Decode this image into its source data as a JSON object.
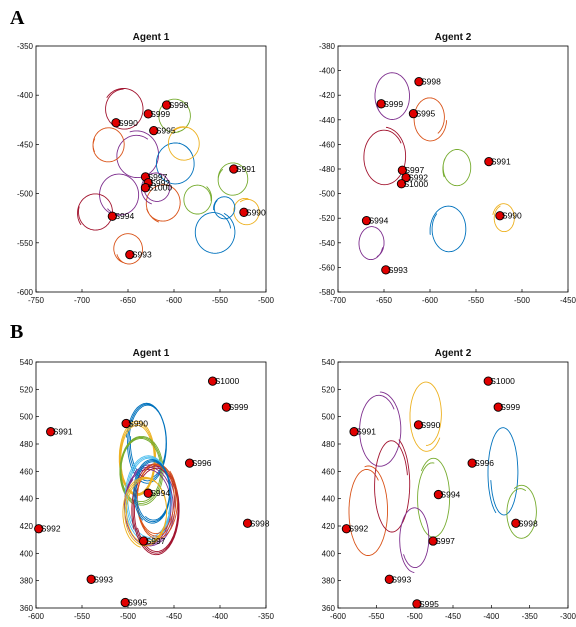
{
  "panel_letters": [
    "A",
    "B"
  ],
  "chart_data": [
    {
      "type": "scatter",
      "panel": "A",
      "title": "Agent 1",
      "xlim": [
        -750,
        -500
      ],
      "ylim": [
        -600,
        -350
      ],
      "xticks": [
        -750,
        -700,
        -650,
        -600,
        -550,
        -500
      ],
      "yticks": [
        -600,
        -550,
        -500,
        -450,
        -400,
        -350
      ],
      "grid": false,
      "points": [
        {
          "label": "S998",
          "x": -608,
          "y": -410
        },
        {
          "label": "S999",
          "x": -628,
          "y": -419
        },
        {
          "label": "S990",
          "x": -663,
          "y": -428
        },
        {
          "label": "S995",
          "x": -622,
          "y": -436
        },
        {
          "label": "S997",
          "x": -631,
          "y": -483
        },
        {
          "label": "S992",
          "x": -628,
          "y": -489
        },
        {
          "label": "S1000",
          "x": -631,
          "y": -494
        },
        {
          "label": "S991",
          "x": -535,
          "y": -475
        },
        {
          "label": "S990",
          "x": -524,
          "y": -519
        },
        {
          "label": "S994",
          "x": -667,
          "y": -523
        },
        {
          "label": "S993",
          "x": -648,
          "y": -562
        }
      ],
      "loops": [
        {
          "color": "#77AC30",
          "cx": -600,
          "cy": -420,
          "r": 18
        },
        {
          "color": "#A2142F",
          "cx": -655,
          "cy": -415,
          "r": 22
        },
        {
          "color": "#7E2F8E",
          "cx": -640,
          "cy": -460,
          "r": 24
        },
        {
          "color": "#0072BD",
          "cx": -600,
          "cy": -470,
          "r": 22
        },
        {
          "color": "#D95319",
          "cx": -610,
          "cy": -510,
          "r": 20
        },
        {
          "color": "#EDB120",
          "cx": -590,
          "cy": -450,
          "r": 18
        },
        {
          "color": "#7E2F8E",
          "cx": -660,
          "cy": -500,
          "r": 22
        },
        {
          "color": "#77AC30",
          "cx": -535,
          "cy": -485,
          "r": 17
        },
        {
          "color": "#0072BD",
          "cx": -555,
          "cy": -540,
          "r": 22
        },
        {
          "color": "#EDB120",
          "cx": -520,
          "cy": -520,
          "r": 14
        },
        {
          "color": "#A2142F",
          "cx": -685,
          "cy": -520,
          "r": 20
        },
        {
          "color": "#0072BD",
          "cx": -545,
          "cy": -515,
          "r": 12
        },
        {
          "color": "#D95319",
          "cx": -650,
          "cy": -555,
          "r": 16
        },
        {
          "color": "#7E2F8E",
          "cx": -620,
          "cy": -495,
          "r": 16
        },
        {
          "color": "#77AC30",
          "cx": -575,
          "cy": -505,
          "r": 16
        },
        {
          "color": "#D95319",
          "cx": -670,
          "cy": -450,
          "r": 18
        }
      ]
    },
    {
      "type": "scatter",
      "panel": "A",
      "title": "Agent 2",
      "xlim": [
        -700,
        -450
      ],
      "ylim": [
        -580,
        -380
      ],
      "xticks": [
        -700,
        -650,
        -600,
        -550,
        -500,
        -450
      ],
      "yticks": [
        -580,
        -560,
        -540,
        -520,
        -500,
        -480,
        -460,
        -440,
        -420,
        -400,
        -380
      ],
      "grid": false,
      "points": [
        {
          "label": "S998",
          "x": -612,
          "y": -409
        },
        {
          "label": "S999",
          "x": -653,
          "y": -427
        },
        {
          "label": "S995",
          "x": -618,
          "y": -435
        },
        {
          "label": "S997",
          "x": -630,
          "y": -481
        },
        {
          "label": "S992",
          "x": -626,
          "y": -487
        },
        {
          "label": "S1000",
          "x": -631,
          "y": -492
        },
        {
          "label": "S991",
          "x": -536,
          "y": -474
        },
        {
          "label": "S990",
          "x": -524,
          "y": -518
        },
        {
          "label": "S994",
          "x": -669,
          "y": -522
        },
        {
          "label": "S993",
          "x": -648,
          "y": -562
        }
      ],
      "loops": [
        {
          "color": "#7E2F8E",
          "cx": -640,
          "cy": -420,
          "r": 20
        },
        {
          "color": "#A2142F",
          "cx": -650,
          "cy": -470,
          "r": 24
        },
        {
          "color": "#D95319",
          "cx": -600,
          "cy": -440,
          "r": 18
        },
        {
          "color": "#77AC30",
          "cx": -570,
          "cy": -480,
          "r": 16
        },
        {
          "color": "#0072BD",
          "cx": -580,
          "cy": -530,
          "r": 20
        },
        {
          "color": "#EDB120",
          "cx": -520,
          "cy": -520,
          "r": 12
        },
        {
          "color": "#7E2F8E",
          "cx": -665,
          "cy": -540,
          "r": 14
        }
      ]
    },
    {
      "type": "scatter",
      "panel": "B",
      "title": "Agent 1",
      "xlim": [
        -600,
        -350
      ],
      "ylim": [
        360,
        540
      ],
      "xticks": [
        -600,
        -550,
        -500,
        -450,
        -400,
        -350
      ],
      "yticks": [
        360,
        380,
        400,
        420,
        440,
        460,
        480,
        500,
        520,
        540
      ],
      "grid": false,
      "points": [
        {
          "label": "S1000",
          "x": -408,
          "y": 526
        },
        {
          "label": "S999",
          "x": -393,
          "y": 507
        },
        {
          "label": "S991",
          "x": -584,
          "y": 489
        },
        {
          "label": "S990",
          "x": -502,
          "y": 495
        },
        {
          "label": "S996",
          "x": -433,
          "y": 466
        },
        {
          "label": "S994",
          "x": -478,
          "y": 444
        },
        {
          "label": "S997",
          "x": -483,
          "y": 409
        },
        {
          "label": "S998",
          "x": -370,
          "y": 422
        },
        {
          "label": "S992",
          "x": -597,
          "y": 418
        },
        {
          "label": "S993",
          "x": -540,
          "y": 381
        },
        {
          "label": "S995",
          "x": -503,
          "y": 364
        }
      ],
      "loops": [
        {
          "color": "#0072BD",
          "cx": -480,
          "cy": 480,
          "rx": 22,
          "ry": 30
        },
        {
          "color": "#EDB120",
          "cx": -490,
          "cy": 470,
          "rx": 20,
          "ry": 28
        },
        {
          "color": "#77AC30",
          "cx": -485,
          "cy": 460,
          "rx": 24,
          "ry": 26
        },
        {
          "color": "#4DBEEE",
          "cx": -478,
          "cy": 440,
          "rx": 26,
          "ry": 32
        },
        {
          "color": "#7E2F8E",
          "cx": -476,
          "cy": 435,
          "rx": 28,
          "ry": 30
        },
        {
          "color": "#A2142F",
          "cx": -470,
          "cy": 432,
          "rx": 26,
          "ry": 34
        },
        {
          "color": "#D95319",
          "cx": -468,
          "cy": 438,
          "rx": 22,
          "ry": 28
        },
        {
          "color": "#0072BD",
          "cx": -474,
          "cy": 445,
          "rx": 20,
          "ry": 24
        },
        {
          "color": "#EDB120",
          "cx": -482,
          "cy": 430,
          "rx": 24,
          "ry": 26
        }
      ]
    },
    {
      "type": "scatter",
      "panel": "B",
      "title": "Agent 2",
      "xlim": [
        -600,
        -300
      ],
      "ylim": [
        360,
        540
      ],
      "xticks": [
        -600,
        -550,
        -500,
        -450,
        -400,
        -350,
        -300
      ],
      "yticks": [
        360,
        380,
        400,
        420,
        440,
        460,
        480,
        500,
        520,
        540
      ],
      "grid": false,
      "points": [
        {
          "label": "S1000",
          "x": -404,
          "y": 526
        },
        {
          "label": "S999",
          "x": -391,
          "y": 507
        },
        {
          "label": "S991",
          "x": -579,
          "y": 489
        },
        {
          "label": "S990",
          "x": -495,
          "y": 494
        },
        {
          "label": "S996",
          "x": -425,
          "y": 466
        },
        {
          "label": "S994",
          "x": -469,
          "y": 443
        },
        {
          "label": "S997",
          "x": -476,
          "y": 409
        },
        {
          "label": "S998",
          "x": -368,
          "y": 422
        },
        {
          "label": "S992",
          "x": -589,
          "y": 418
        },
        {
          "label": "S993",
          "x": -533,
          "y": 381
        },
        {
          "label": "S995",
          "x": -497,
          "y": 363
        }
      ],
      "loops": [
        {
          "color": "#7E2F8E",
          "cx": -545,
          "cy": 490,
          "rx": 28,
          "ry": 28
        },
        {
          "color": "#EDB120",
          "cx": -485,
          "cy": 500,
          "rx": 22,
          "ry": 26
        },
        {
          "color": "#77AC30",
          "cx": -475,
          "cy": 440,
          "rx": 22,
          "ry": 30
        },
        {
          "color": "#D95319",
          "cx": -560,
          "cy": 430,
          "rx": 26,
          "ry": 34
        },
        {
          "color": "#A2142F",
          "cx": -530,
          "cy": 450,
          "rx": 24,
          "ry": 36
        },
        {
          "color": "#0072BD",
          "cx": -385,
          "cy": 460,
          "rx": 20,
          "ry": 34
        },
        {
          "color": "#77AC30",
          "cx": -360,
          "cy": 430,
          "rx": 20,
          "ry": 20
        },
        {
          "color": "#7E2F8E",
          "cx": -500,
          "cy": 410,
          "rx": 20,
          "ry": 24
        }
      ]
    }
  ]
}
